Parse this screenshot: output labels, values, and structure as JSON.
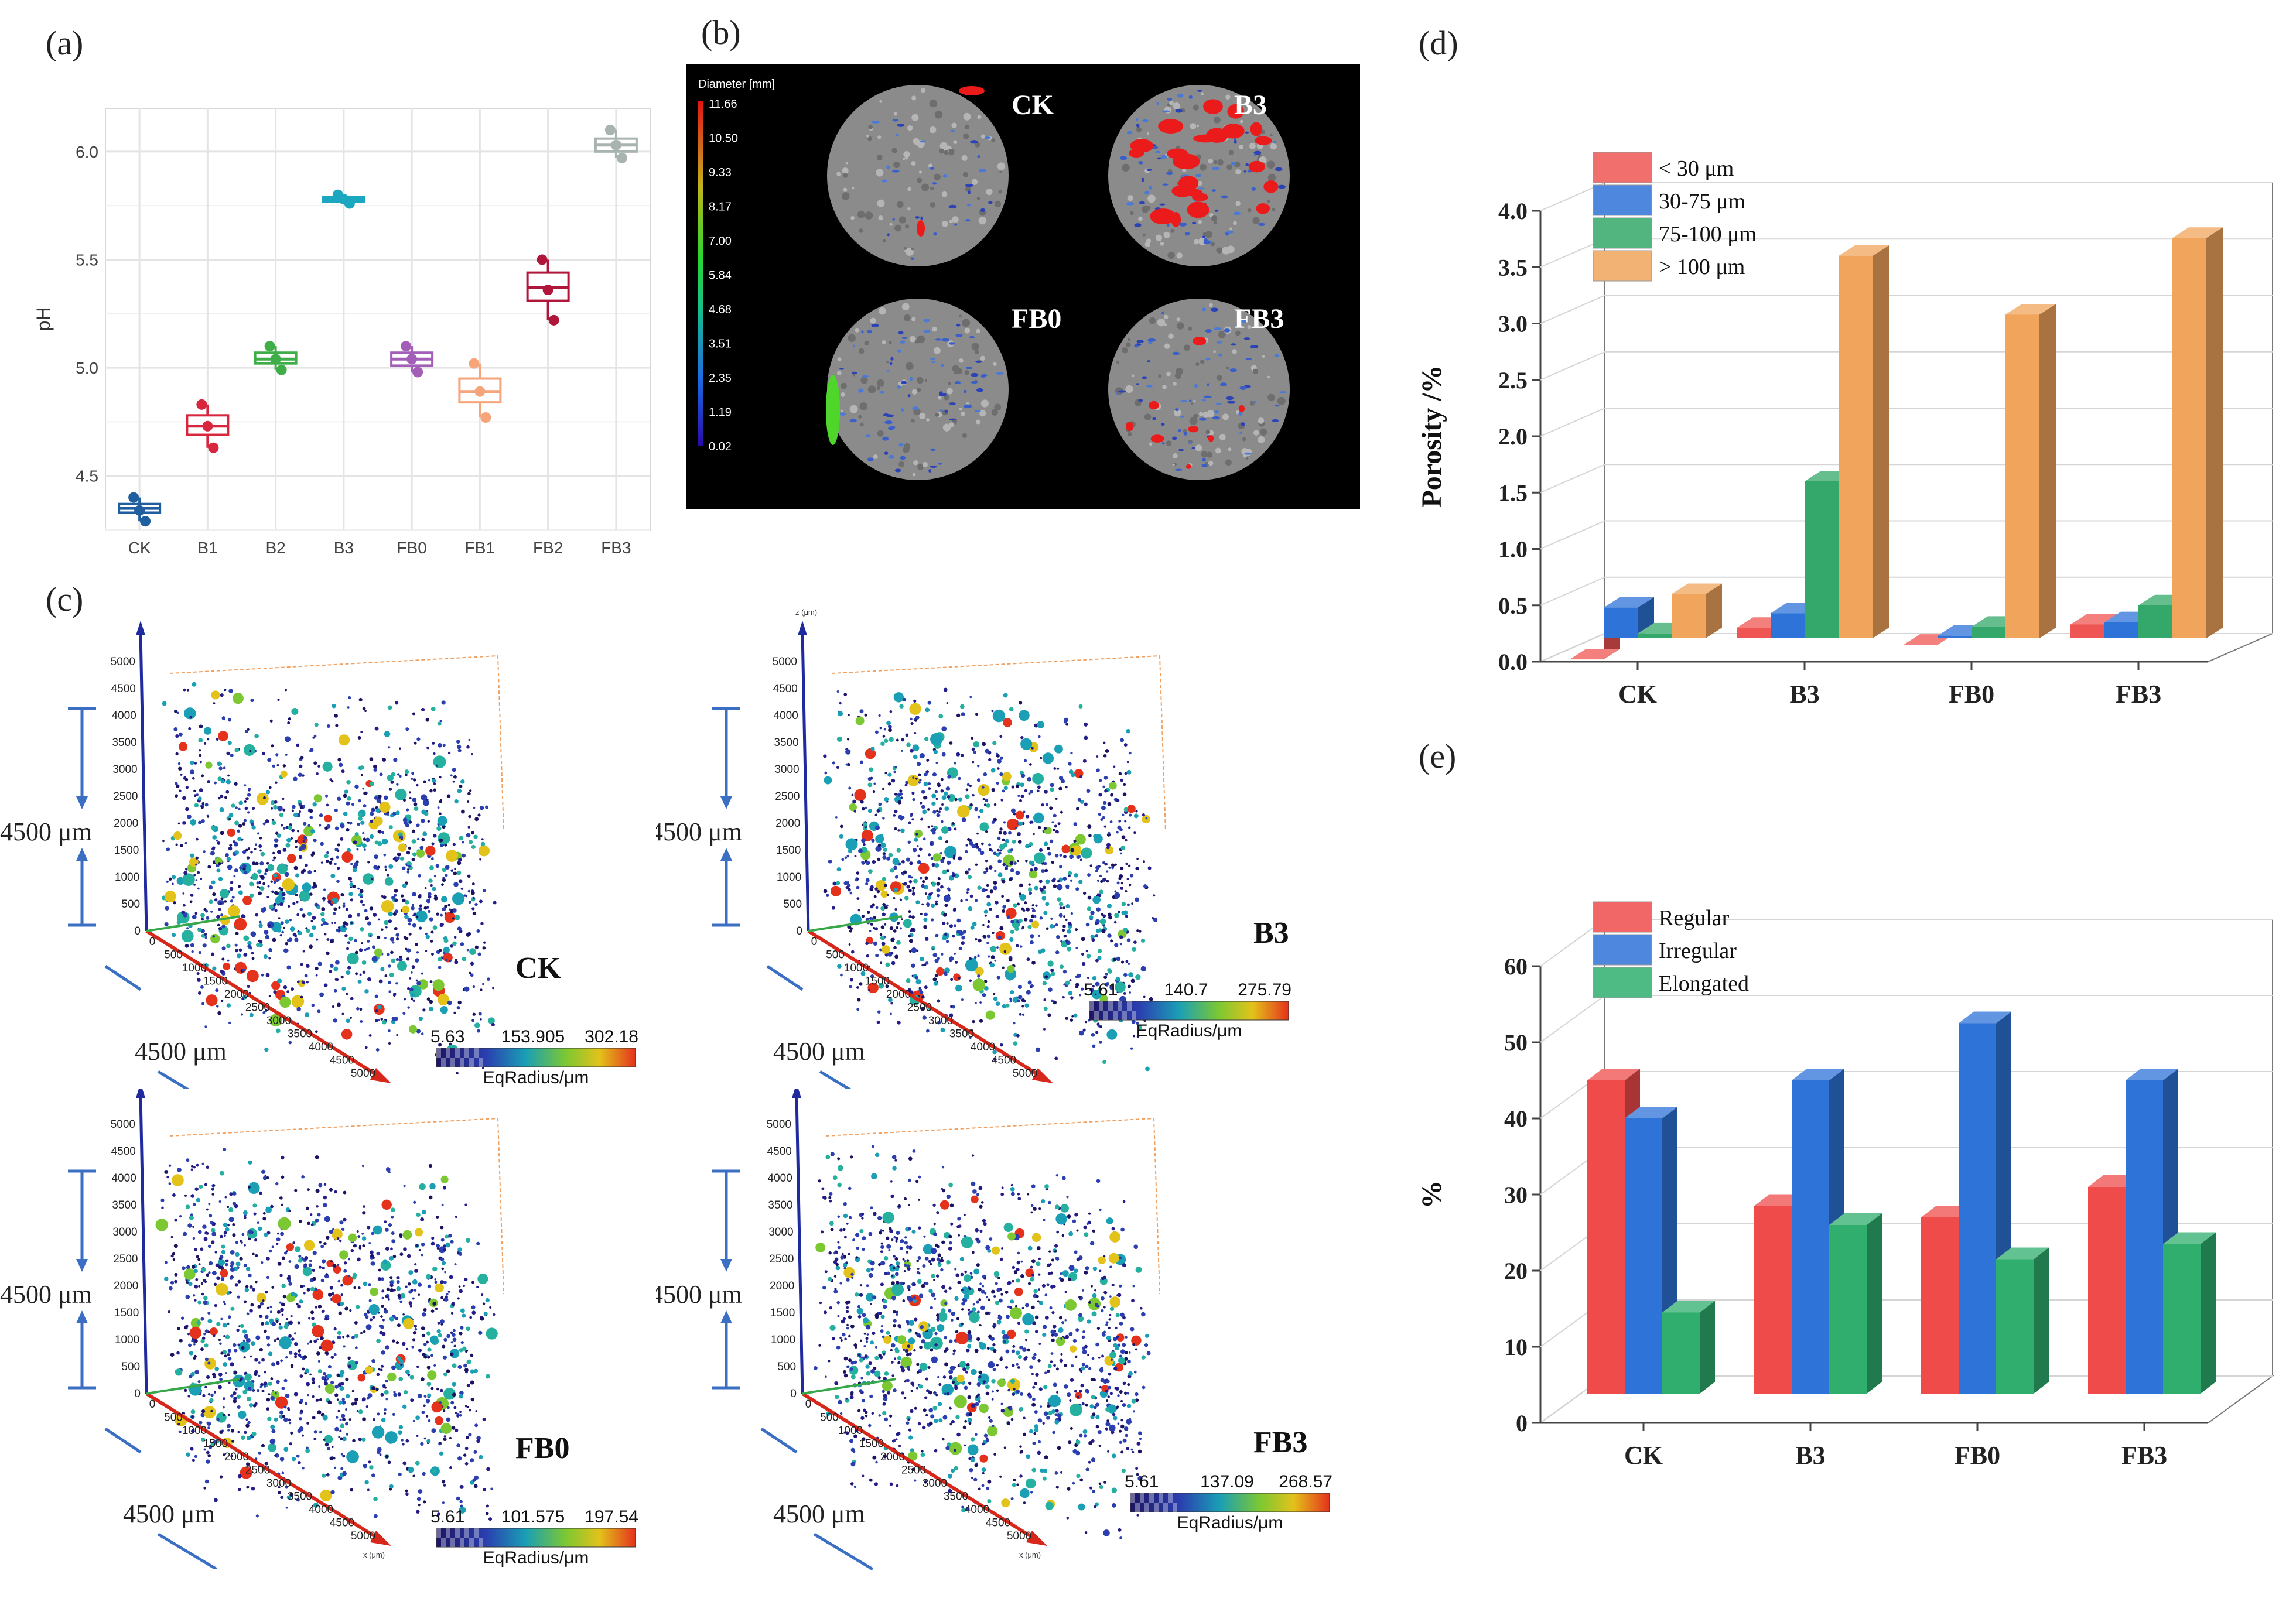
{
  "panels": {
    "a": "(a)",
    "b": "(b)",
    "c": "(c)",
    "d": "(d)",
    "e": "(e)"
  },
  "chart_data": [
    {
      "id": "a",
      "type": "boxplot",
      "ylabel": "pH",
      "categories": [
        "CK",
        "B1",
        "B2",
        "B3",
        "FB0",
        "FB1",
        "FB2",
        "FB3"
      ],
      "yticks": [
        "4.5",
        "5.0",
        "5.5",
        "6.0"
      ],
      "ylim": [
        4.25,
        6.2
      ],
      "colors": [
        "#1f5fa0",
        "#d7263d",
        "#3fae49",
        "#1aa7bf",
        "#a35fb8",
        "#f6a47a",
        "#b0163a",
        "#a9b4b1"
      ],
      "medians": [
        4.35,
        4.73,
        5.04,
        5.78,
        5.04,
        4.89,
        5.37,
        6.03
      ],
      "q1": [
        4.33,
        4.69,
        5.02,
        5.77,
        5.01,
        4.84,
        5.31,
        6.0
      ],
      "q3": [
        4.37,
        4.78,
        5.07,
        5.79,
        5.07,
        4.95,
        5.44,
        6.06
      ],
      "points": [
        [
          4.4,
          4.34,
          4.29
        ],
        [
          4.83,
          4.73,
          4.63
        ],
        [
          5.1,
          5.04,
          4.99
        ],
        [
          5.8,
          5.78,
          5.76
        ],
        [
          5.1,
          5.04,
          4.98
        ],
        [
          5.02,
          4.89,
          4.77
        ],
        [
          5.5,
          5.36,
          5.22
        ],
        [
          6.1,
          6.03,
          5.97
        ]
      ]
    },
    {
      "id": "d",
      "type": "bar3d",
      "ylabel": "Porosity /%",
      "categories": [
        "CK",
        "B3",
        "FB0",
        "FB3"
      ],
      "yticks": [
        "0.0",
        "0.5",
        "1.0",
        "1.5",
        "2.0",
        "2.5",
        "3.0",
        "3.5",
        "4.0"
      ],
      "ylim": [
        0,
        4.0
      ],
      "series": [
        {
          "name": "< 30 μm",
          "color": "#ef5552",
          "values": [
            0.02,
            0.3,
            0.15,
            0.33
          ]
        },
        {
          "name": "30-75 μm",
          "color": "#2e73d8",
          "values": [
            0.48,
            0.43,
            0.23,
            0.35
          ]
        },
        {
          "name": "75-100 μm",
          "color": "#33a86a",
          "values": [
            0.25,
            1.6,
            0.31,
            0.5
          ]
        },
        {
          "name": "> 100 μm",
          "color": "#f0a45c",
          "values": [
            0.6,
            3.6,
            3.08,
            3.76
          ]
        }
      ]
    },
    {
      "id": "e",
      "type": "bar3d",
      "ylabel": "%",
      "categories": [
        "CK",
        "B3",
        "FB0",
        "FB3"
      ],
      "yticks": [
        "0",
        "10",
        "20",
        "30",
        "40",
        "50",
        "60"
      ],
      "ylim": [
        0,
        60
      ],
      "series": [
        {
          "name": "Regular",
          "color": "#ef4b4b",
          "values": [
            45,
            28.5,
            27,
            31
          ]
        },
        {
          "name": "Irregular",
          "color": "#2e73d8",
          "values": [
            40,
            45,
            52.5,
            45
          ]
        },
        {
          "name": "Elongated",
          "color": "#2fae6e",
          "values": [
            14.5,
            26,
            21.5,
            23.5
          ]
        }
      ]
    }
  ],
  "ct_slices": {
    "colorbar_title": "Diameter [mm]",
    "colorbar_ticks": [
      "11.66",
      "10.50",
      "9.33",
      "8.17",
      "7.00",
      "5.84",
      "4.68",
      "3.51",
      "2.35",
      "1.19",
      "0.02"
    ],
    "samples": [
      "CK",
      "B3",
      "FB0",
      "FB3"
    ]
  },
  "volumes": [
    {
      "label": "CK",
      "cb_min": "5.63",
      "cb_mid": "153.905",
      "cb_max": "302.18"
    },
    {
      "label": "B3",
      "cb_min": "5.61",
      "cb_mid": "140.7",
      "cb_max": "275.79"
    },
    {
      "label": "FB0",
      "cb_min": "5.61",
      "cb_mid": "101.575",
      "cb_max": "197.54"
    },
    {
      "label": "FB3",
      "cb_min": "5.61",
      "cb_mid": "137.09",
      "cb_max": "268.57"
    }
  ],
  "volume_common": {
    "cb_title": "EqRadius/μm",
    "dim_label": "4500 μm",
    "z_axis_label": "z (μm)",
    "x_axis_label": "x (μm)",
    "z_ticks": [
      "0",
      "500",
      "1000",
      "1500",
      "2000",
      "2500",
      "3000",
      "3500",
      "4000",
      "4500",
      "5000"
    ],
    "x_ticks": [
      "0",
      "500",
      "1000",
      "1500",
      "2000",
      "2500",
      "3000",
      "3500",
      "4000",
      "4500",
      "5000"
    ]
  }
}
